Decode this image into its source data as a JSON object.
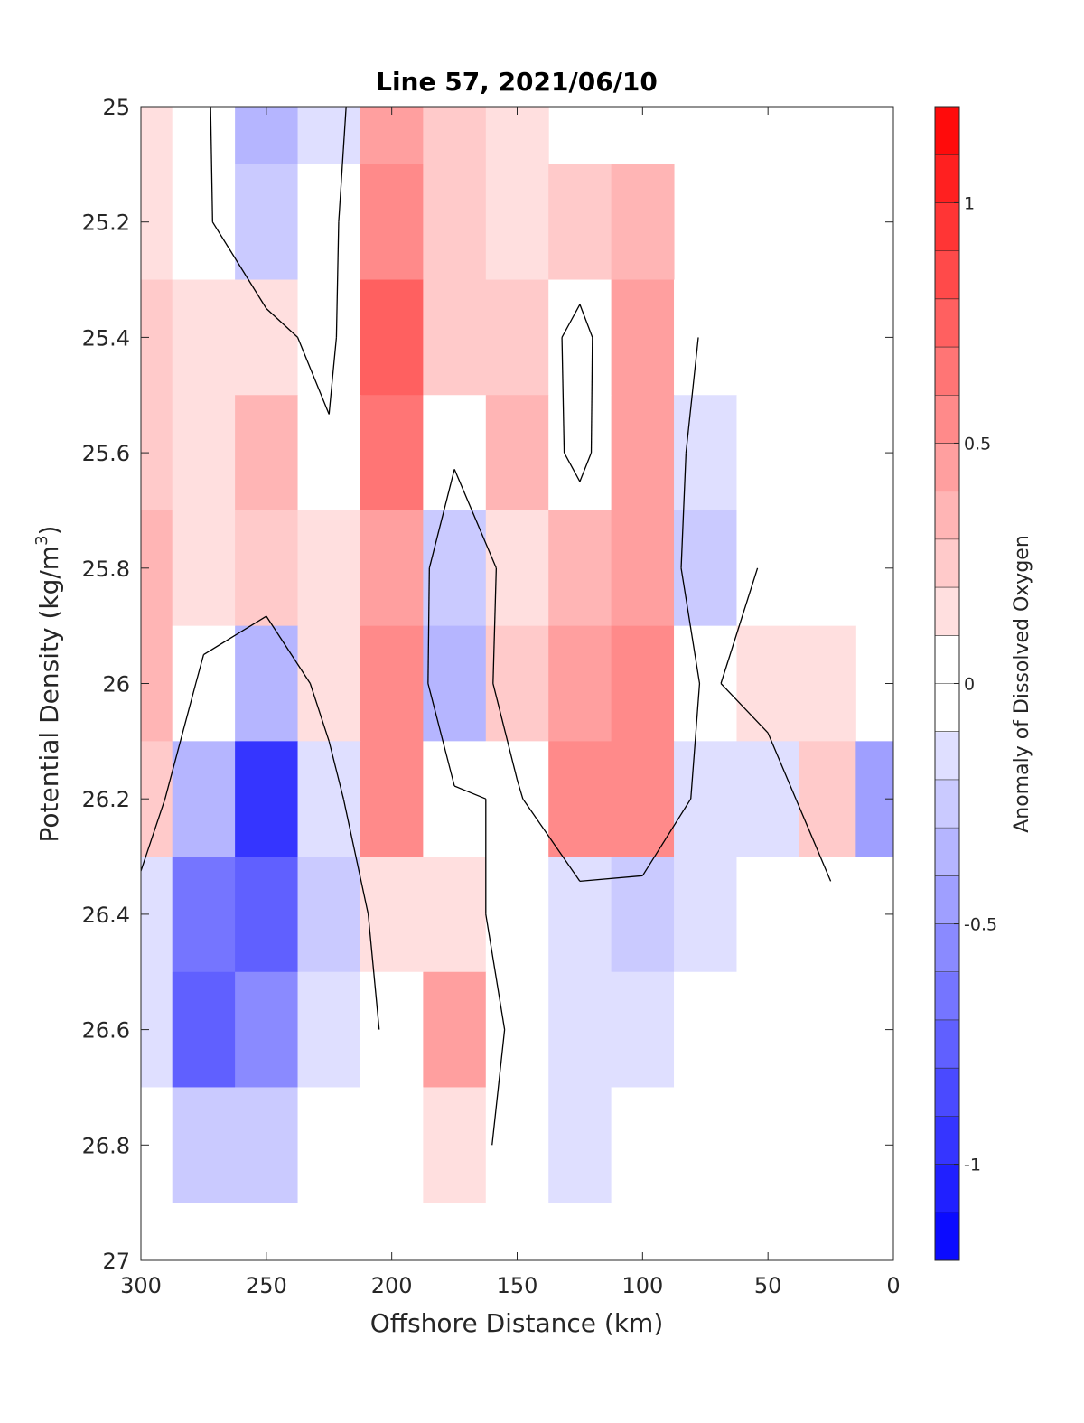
{
  "chart_data": {
    "type": "heatmap",
    "title": "Line 57, 2021/06/10",
    "xlabel": "Offshore Distance (km)",
    "ylabel_main": "Potential Density (kg/m",
    "ylabel_sup": "3",
    "ylabel_close": ")",
    "xlim": [
      300,
      0
    ],
    "ylim": [
      27,
      25
    ],
    "xticks": [
      "300",
      "250",
      "200",
      "150",
      "100",
      "50",
      "0"
    ],
    "yticks": [
      "25",
      "25.2",
      "25.4",
      "25.6",
      "25.8",
      "26",
      "26.2",
      "26.4",
      "26.6",
      "26.8",
      "27"
    ],
    "x": [
      300,
      275,
      250,
      225,
      200,
      175,
      150,
      125,
      100,
      75,
      50,
      25,
      5
    ],
    "y": [
      25.0,
      25.2,
      25.4,
      25.6,
      25.8,
      26.0,
      26.2,
      26.4,
      26.6,
      26.8
    ],
    "z": [
      [
        0.1,
        0.05,
        -0.4,
        -0.15,
        0.4,
        0.25,
        0.1,
        null,
        null,
        null,
        null,
        null,
        null
      ],
      [
        0.1,
        0.05,
        -0.3,
        -0.1,
        0.55,
        0.2,
        0.15,
        0.25,
        0.35,
        null,
        null,
        null,
        null
      ],
      [
        0.2,
        0.1,
        0.1,
        -0.1,
        0.75,
        0.2,
        0.25,
        -0.1,
        0.4,
        -0.05,
        null,
        null,
        null
      ],
      [
        0.25,
        0.15,
        0.3,
        0.05,
        0.6,
        0.05,
        0.3,
        -0.1,
        0.45,
        -0.2,
        0.0,
        null,
        null
      ],
      [
        0.35,
        0.15,
        0.25,
        0.15,
        0.45,
        -0.3,
        0.15,
        0.3,
        0.4,
        -0.25,
        0.05,
        null,
        null
      ],
      [
        0.35,
        -0.05,
        -0.35,
        0.15,
        0.55,
        -0.4,
        0.25,
        0.4,
        0.5,
        -0.05,
        0.15,
        0.1,
        null
      ],
      [
        0.25,
        -0.4,
        -0.95,
        -0.15,
        0.5,
        0.05,
        -0.05,
        0.5,
        0.5,
        -0.15,
        -0.2,
        0.25,
        -0.45
      ],
      [
        -0.15,
        -0.7,
        -0.75,
        -0.25,
        0.15,
        0.1,
        -0.1,
        -0.2,
        -0.25,
        -0.15,
        -0.1,
        -0.1,
        null
      ],
      [
        -0.2,
        -0.75,
        -0.55,
        -0.2,
        0.05,
        0.4,
        -0.1,
        -0.15,
        -0.15,
        0.0,
        0.0,
        null,
        null
      ],
      [
        -0.1,
        -0.25,
        -0.3,
        -0.1,
        0.0,
        0.15,
        -0.1,
        -0.15,
        -0.1,
        null,
        null,
        null,
        null
      ]
    ],
    "colorbar": {
      "label": "Anomaly of Dissolved Oxygen",
      "ticks": [
        "1",
        "0.5",
        "0",
        "-0.5",
        "-1"
      ],
      "tick_values": [
        1,
        0.5,
        0,
        -0.5,
        -1
      ],
      "range": [
        -1.2,
        1.2
      ],
      "levels": 24,
      "colors": {
        "negative": "#0000ff",
        "zero": "#ffffff",
        "positive": "#ff0000"
      }
    },
    "contour_levels": [
      0
    ],
    "grid": false
  }
}
